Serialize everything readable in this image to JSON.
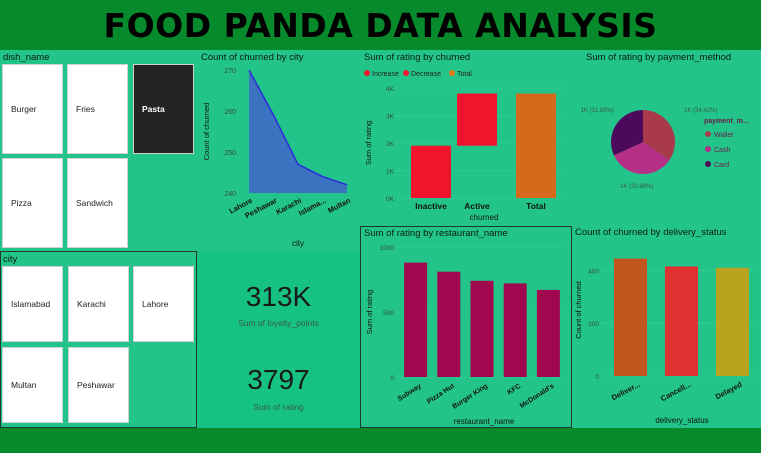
{
  "header": {
    "title": "FOOD PANDA DATA ANALYSIS"
  },
  "dish_slicer": {
    "title": "dish_name",
    "items": [
      "Burger",
      "Fries",
      "Pasta",
      "Pizza",
      "Sandwich"
    ],
    "selected": "Pasta"
  },
  "city_slicer": {
    "title": "city",
    "items": [
      "Islamabad",
      "Karachi",
      "Lahore",
      "Multan",
      "Peshawar"
    ]
  },
  "kpis": {
    "loyalty_value": "313K",
    "loyalty_label": "Sum of loyalty_points",
    "rating_value": "3797",
    "rating_label": "Sum of rating"
  },
  "chart_data": [
    {
      "type": "area",
      "title": "Count of churned by city",
      "xlabel": "city",
      "ylabel": "Count of churned",
      "categories": [
        "Lahore",
        "Peshawar",
        "Karachi",
        "Islama...",
        "Multan"
      ],
      "values": [
        270,
        259,
        247,
        244,
        242
      ],
      "yticks": [
        240,
        250,
        260,
        270
      ],
      "ylim": [
        240,
        270
      ],
      "color": "#3d6fc4",
      "line_color": "#2b2bdb"
    },
    {
      "type": "bar",
      "subtype": "waterfall",
      "title": "Sum of rating by churned",
      "xlabel": "churned",
      "ylabel": "Sum of rating",
      "legend": [
        "Increase",
        "Decrease",
        "Total"
      ],
      "legend_colors": [
        "#f0142d",
        "#f0142d",
        "#e07b1e"
      ],
      "categories": [
        "Inactive",
        "Active",
        "Total"
      ],
      "values": [
        1900,
        1900,
        3797
      ],
      "yticks": [
        "0K",
        "1K",
        "2K",
        "3K",
        "4K"
      ],
      "ylim": [
        0,
        4000
      ],
      "colors": [
        "#f0142d",
        "#f0142d",
        "#d66a1c"
      ]
    },
    {
      "type": "pie",
      "title": "Sum of rating by payment_method",
      "legend_title": "payment_m...",
      "labels": [
        "Wallet",
        "Cash",
        "Card"
      ],
      "values": [
        34.42,
        33.68,
        31.89
      ],
      "slice_labels": [
        "1K (34.42%)",
        "1K (33.68%)",
        "1K (31.89%)"
      ],
      "colors": [
        "#a83a4a",
        "#b62f86",
        "#4d0a5c"
      ]
    },
    {
      "type": "bar",
      "title": "Sum of rating by restaurant_name",
      "xlabel": "restaurant_name",
      "ylabel": "Sum of rating",
      "categories": [
        "Subway",
        "Pizza Hut",
        "Burger King",
        "KFC",
        "McDonald's"
      ],
      "values": [
        880,
        810,
        740,
        720,
        670
      ],
      "yticks": [
        0,
        500,
        1000
      ],
      "ylim": [
        0,
        1000
      ],
      "color": "#a0074e"
    },
    {
      "type": "bar",
      "title": "Count of churned by delivery_status",
      "xlabel": "delivery_status",
      "ylabel": "Count of churned",
      "categories": [
        "Deliver...",
        "Cancell...",
        "Delayed"
      ],
      "values": [
        445,
        415,
        410
      ],
      "yticks": [
        0,
        200,
        400
      ],
      "ylim": [
        0,
        500
      ],
      "colors": [
        "#c1561f",
        "#e03132",
        "#b8a41f"
      ]
    }
  ]
}
